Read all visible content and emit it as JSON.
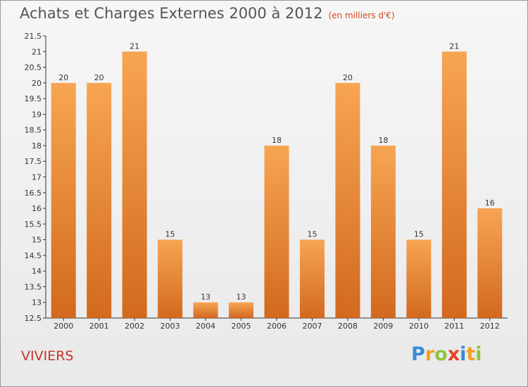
{
  "header": {
    "title": "Achats et Charges Externes 2000 à 2012",
    "subtitle": "(en milliers d'€)"
  },
  "footer": {
    "commune": "VIVIERS",
    "logo_text": "Proxiti"
  },
  "colors": {
    "bar_light": "#f7a553",
    "bar_dark": "#d2691e",
    "commune_text": "#c0392b",
    "logo_letters": [
      "#3a8ad6",
      "#f4a020",
      "#8dc63f",
      "#e8412b",
      "#3a8ad6",
      "#f4a020",
      "#8dc63f"
    ]
  },
  "chart_data": {
    "type": "bar",
    "categories": [
      "2000",
      "2001",
      "2002",
      "2003",
      "2004",
      "2005",
      "2006",
      "2007",
      "2008",
      "2009",
      "2010",
      "2011",
      "2012"
    ],
    "values": [
      20,
      20,
      21,
      15,
      13,
      13,
      18,
      15,
      20,
      18,
      15,
      21,
      16
    ],
    "labels": [
      "20",
      "20",
      "21",
      "15",
      "13",
      "13",
      "18",
      "15",
      "20",
      "18",
      "15",
      "21",
      "16"
    ],
    "title": "Achats et Charges Externes 2000 à 2012",
    "ylim": [
      12.5,
      21.5
    ],
    "yticks": [
      12.5,
      13,
      13.5,
      14,
      14.5,
      15,
      15.5,
      16,
      16.5,
      17,
      17.5,
      18,
      18.5,
      19,
      19.5,
      20,
      20.5,
      21,
      21.5
    ],
    "ytick_labels": [
      "12.5",
      "13",
      "13.5",
      "14",
      "14.5",
      "15",
      "15.5",
      "16",
      "16.5",
      "17",
      "17.5",
      "18",
      "18.5",
      "19",
      "19.5",
      "20",
      "20.5",
      "21",
      "21.5"
    ],
    "grid": false,
    "legend": "none"
  }
}
